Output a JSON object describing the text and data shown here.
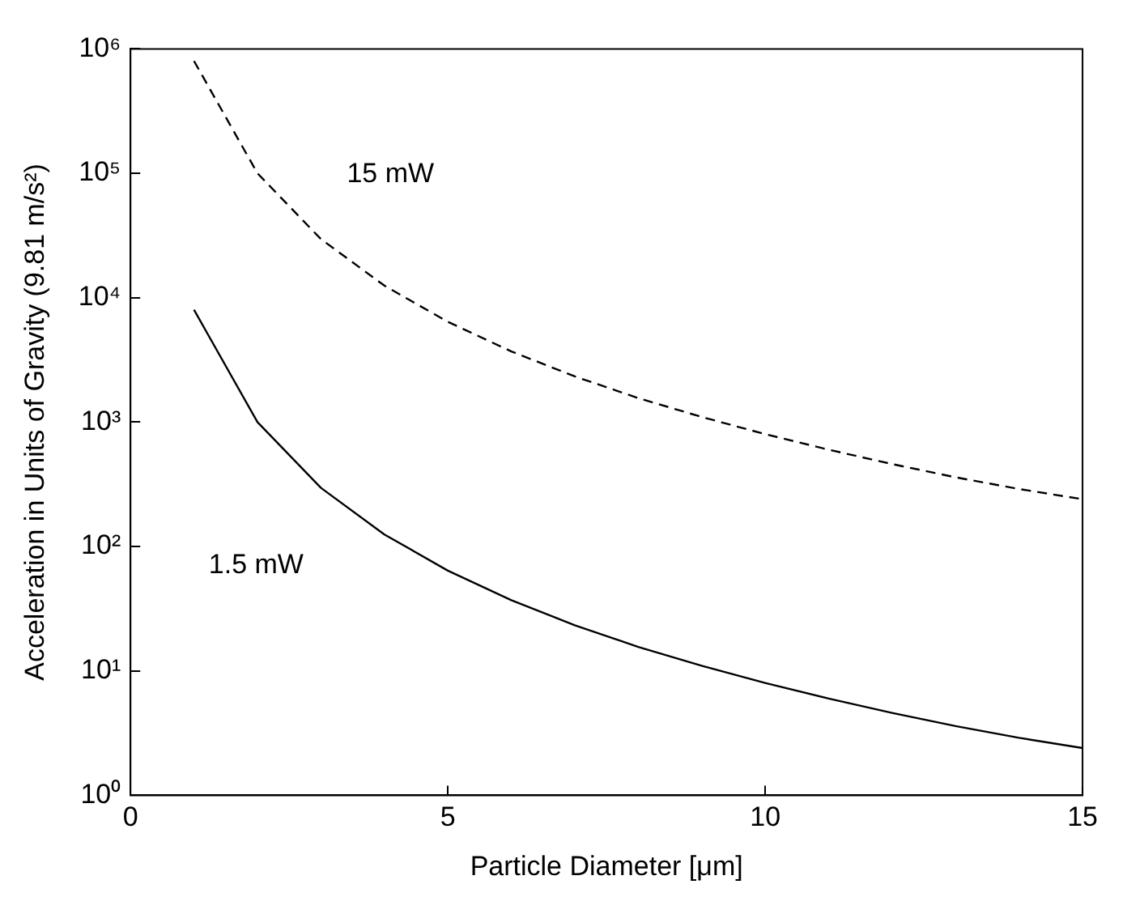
{
  "chart_data": {
    "type": "line",
    "xlabel": "Particle Diameter [μm]",
    "ylabel": "Acceleration in Units of Gravity (9.81 m/s²)",
    "x": [
      1,
      2,
      3,
      4,
      5,
      6,
      7,
      8,
      9,
      10,
      11,
      12,
      13,
      14,
      15
    ],
    "series": [
      {
        "name": "15 mW",
        "color": "#000000",
        "line_style": "dashed",
        "values": [
          800000,
          100000,
          29600,
          12500,
          6400,
          3700,
          2330,
          1560,
          1100,
          800,
          600,
          460,
          360,
          290,
          240
        ]
      },
      {
        "name": "1.5 mW",
        "color": "#000000",
        "line_style": "solid",
        "values": [
          8000,
          1000,
          296,
          125,
          64,
          37,
          23.3,
          15.6,
          11,
          8,
          6,
          4.6,
          3.6,
          2.9,
          2.4
        ]
      }
    ],
    "xlim": [
      0,
      15
    ],
    "xticks": [
      0,
      5,
      10,
      15
    ],
    "log": true,
    "ylim": [
      1,
      1000000
    ],
    "yticks": [
      {
        "value": 1,
        "label": "10⁰"
      },
      {
        "value": 10,
        "label": "10¹"
      },
      {
        "value": 100,
        "label": "10²"
      },
      {
        "value": 1000,
        "label": "10³"
      },
      {
        "value": 10000,
        "label": "10⁴"
      },
      {
        "value": 100000,
        "label": "10⁵"
      },
      {
        "value": 1000000,
        "label": "10⁶"
      }
    ],
    "grid": false,
    "legend": false,
    "marker": "none"
  }
}
